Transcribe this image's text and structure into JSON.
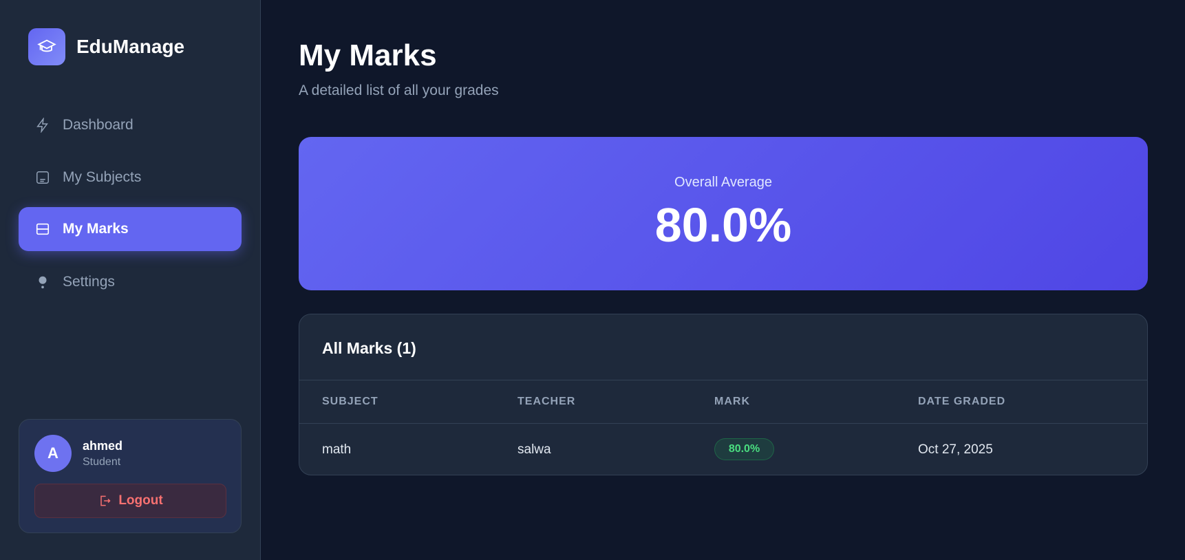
{
  "app": {
    "name": "EduManage"
  },
  "sidebar": {
    "items": [
      {
        "label": "Dashboard",
        "icon": "lightning-icon"
      },
      {
        "label": "My Subjects",
        "icon": "book-icon"
      },
      {
        "label": "My Marks",
        "icon": "card-icon",
        "active": true
      },
      {
        "label": "Settings",
        "icon": "gear-icon"
      }
    ]
  },
  "user": {
    "initial": "A",
    "name": "ahmed",
    "role": "Student",
    "logout_label": "Logout"
  },
  "page": {
    "title": "My Marks",
    "subtitle": "A detailed list of all your grades"
  },
  "summary": {
    "label": "Overall Average",
    "value": "80.0%"
  },
  "marks": {
    "heading": "All Marks (1)",
    "columns": [
      "SUBJECT",
      "TEACHER",
      "MARK",
      "DATE GRADED"
    ],
    "rows": [
      {
        "subject": "math",
        "teacher": "salwa",
        "mark": "80.0%",
        "date": "Oct 27, 2025"
      }
    ]
  },
  "colors": {
    "accent": "#6366f1",
    "success": "#4ade80",
    "danger": "#f87171"
  }
}
